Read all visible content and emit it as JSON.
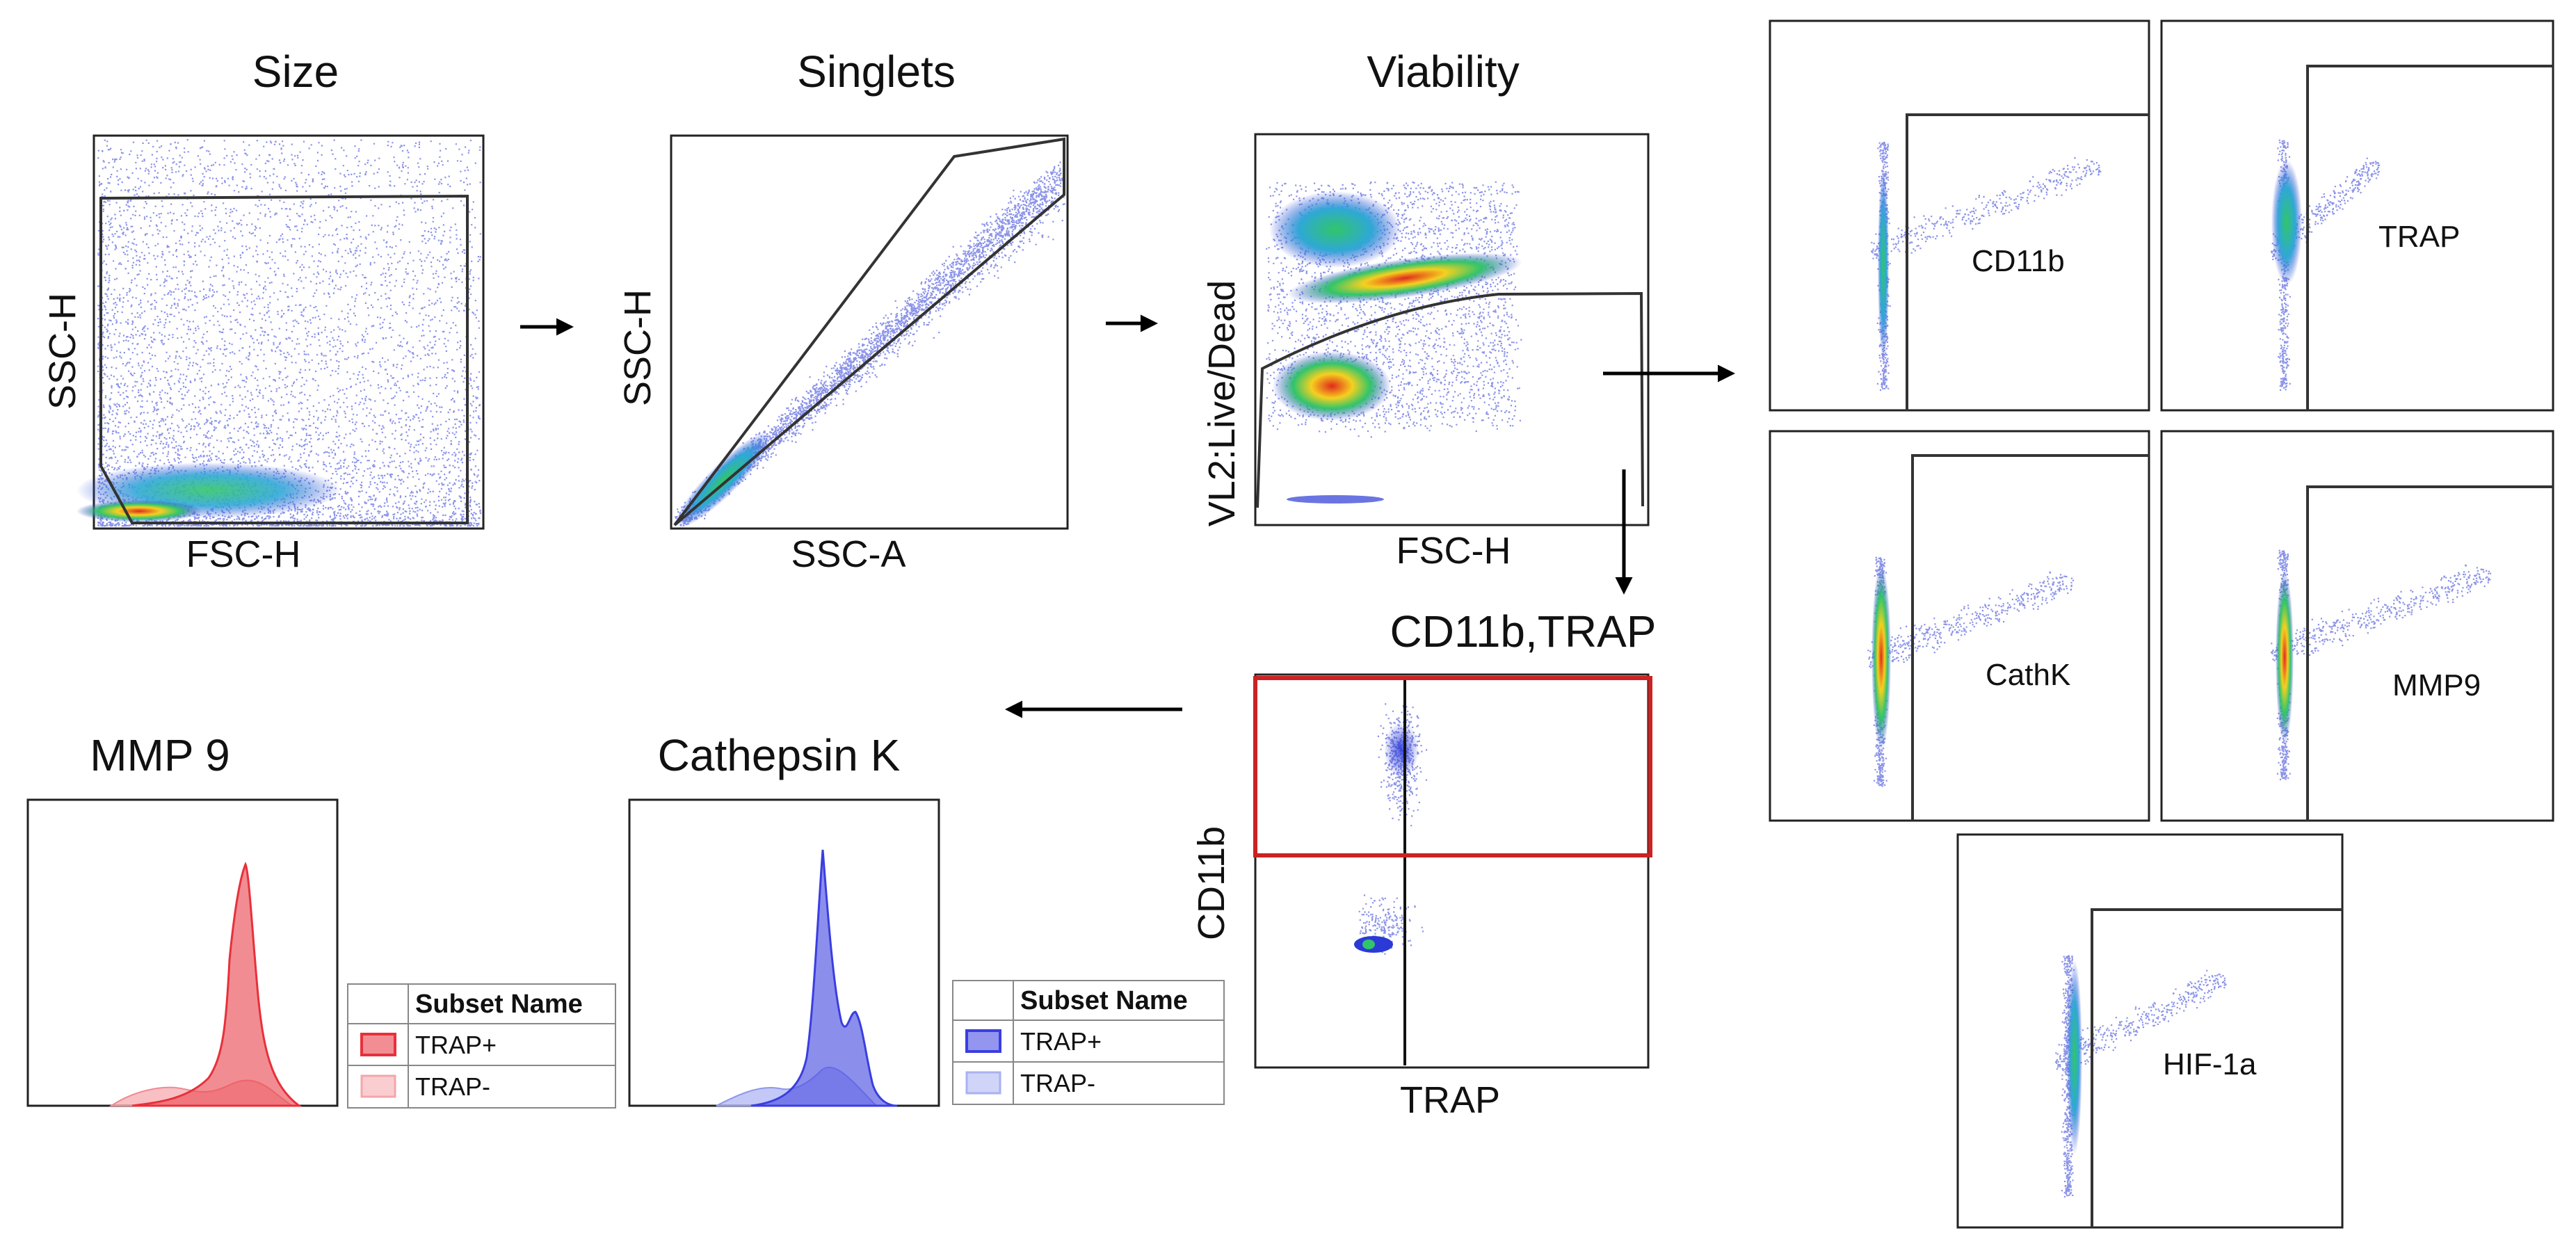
{
  "gating": {
    "size": {
      "title": "Size",
      "xlabel": "FSC-H",
      "ylabel": "SSC-H"
    },
    "singlets": {
      "title": "Singlets",
      "xlabel": "SSC-A",
      "ylabel": "SSC-H"
    },
    "viability": {
      "title": "Viability",
      "xlabel": "FSC-H",
      "ylabel": "VL2:Live/Dead"
    },
    "quadrant": {
      "title": "CD11b,TRAP",
      "xlabel": "TRAP",
      "ylabel": "CD11b"
    }
  },
  "marker_panels": [
    "CD11b",
    "TRAP",
    "CathK",
    "MMP9",
    "HIF-1a"
  ],
  "histograms": [
    {
      "title": "MMP 9",
      "legend_header": "Subset Name",
      "items": [
        {
          "label": "TRAP+",
          "color": "#e8303a"
        },
        {
          "label": "TRAP-",
          "color": "#f5a5aa"
        }
      ]
    },
    {
      "title": "Cathepsin K",
      "legend_header": "Subset Name",
      "items": [
        {
          "label": "TRAP+",
          "color": "#3a3ee0"
        },
        {
          "label": "TRAP-",
          "color": "#aab0f2"
        }
      ]
    }
  ],
  "colors": {
    "gate_highlight": "#cc2222",
    "density_low": "#2b3ad6",
    "density_mid": "#31c56a",
    "density_high": "#e02a1d"
  }
}
